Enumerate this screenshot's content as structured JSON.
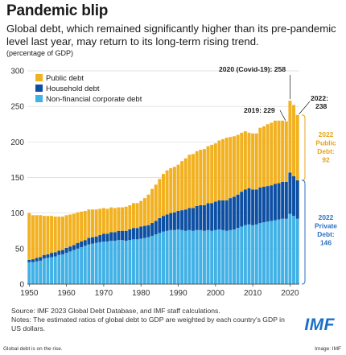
{
  "header": {
    "title": "Pandemic blip",
    "subtitle": "Global debt, which remained significantly higher than its pre-pandemic level last year, may return to its long-term rising trend.",
    "units": "(percentage of GDP)"
  },
  "colors": {
    "public": "#f2b120",
    "household": "#0d4fa3",
    "corporate": "#42b1e6",
    "text": "#1a1a1a",
    "private_annotation": "#2b6fc2",
    "public_annotation": "#e8a316"
  },
  "chart_data": {
    "type": "bar",
    "stacked": true,
    "xlim": [
      1950,
      2022
    ],
    "ylim": [
      0,
      300
    ],
    "y_ticks": [
      "0",
      "50",
      "100",
      "150",
      "200",
      "250",
      "300"
    ],
    "x_ticks": [
      "1950",
      "1960",
      "1970",
      "1980",
      "1990",
      "2000",
      "2010",
      "2020"
    ],
    "legend": {
      "position": "top-left",
      "entries": [
        "Public debt",
        "Household debt",
        "Non-financial corporate debt"
      ]
    },
    "categories": [
      1950,
      1951,
      1952,
      1953,
      1954,
      1955,
      1956,
      1957,
      1958,
      1959,
      1960,
      1961,
      1962,
      1963,
      1964,
      1965,
      1966,
      1967,
      1968,
      1969,
      1970,
      1971,
      1972,
      1973,
      1974,
      1975,
      1976,
      1977,
      1978,
      1979,
      1980,
      1981,
      1982,
      1983,
      1984,
      1985,
      1986,
      1987,
      1988,
      1989,
      1990,
      1991,
      1992,
      1993,
      1994,
      1995,
      1996,
      1997,
      1998,
      1999,
      2000,
      2001,
      2002,
      2003,
      2004,
      2005,
      2006,
      2007,
      2008,
      2009,
      2010,
      2011,
      2012,
      2013,
      2014,
      2015,
      2016,
      2017,
      2018,
      2019,
      2020,
      2021,
      2022
    ],
    "series": [
      {
        "name": "Non-financial corporate debt",
        "values": [
          31,
          31,
          32,
          33,
          36,
          37,
          38,
          39,
          41,
          42,
          44,
          46,
          48,
          50,
          52,
          54,
          56,
          57,
          58,
          59,
          60,
          60,
          61,
          61,
          62,
          62,
          61,
          62,
          63,
          63,
          64,
          65,
          66,
          68,
          70,
          72,
          74,
          75,
          76,
          76,
          77,
          76,
          75,
          76,
          75,
          76,
          76,
          75,
          76,
          75,
          76,
          77,
          76,
          75,
          76,
          77,
          79,
          81,
          83,
          84,
          83,
          84,
          86,
          87,
          88,
          89,
          90,
          91,
          92,
          92,
          99,
          96,
          92
        ]
      },
      {
        "name": "Household debt",
        "values": [
          3,
          4,
          5,
          5,
          5,
          5,
          6,
          6,
          6,
          6,
          7,
          7,
          7,
          8,
          8,
          8,
          9,
          9,
          9,
          10,
          11,
          11,
          12,
          12,
          13,
          13,
          14,
          15,
          16,
          16,
          17,
          17,
          17,
          18,
          19,
          21,
          22,
          23,
          24,
          25,
          26,
          28,
          30,
          31,
          32,
          34,
          35,
          36,
          38,
          39,
          40,
          41,
          42,
          43,
          45,
          46,
          47,
          49,
          50,
          51,
          50,
          49,
          50,
          50,
          50,
          50,
          51,
          51,
          52,
          52,
          58,
          56,
          54
        ]
      },
      {
        "name": "Public debt",
        "values": [
          66,
          62,
          60,
          59,
          55,
          54,
          52,
          50,
          48,
          47,
          46,
          45,
          44,
          43,
          42,
          41,
          40,
          39,
          38,
          37,
          36,
          35,
          35,
          34,
          33,
          33,
          34,
          34,
          35,
          35,
          36,
          39,
          43,
          48,
          51,
          55,
          59,
          62,
          63,
          64,
          65,
          69,
          72,
          75,
          76,
          77,
          78,
          79,
          80,
          82,
          82,
          84,
          86,
          88,
          86,
          85,
          84,
          83,
          82,
          78,
          79,
          79,
          84,
          85,
          87,
          88,
          89,
          88,
          86,
          85,
          101,
          100,
          92
        ]
      }
    ],
    "annotations": [
      {
        "text": "2020 (Covid-19): 258",
        "x": 2020,
        "y": 258
      },
      {
        "text": "2019: 229",
        "x": 2019,
        "y": 229
      },
      {
        "text": "2022:",
        "text2": "238",
        "x": 2022,
        "y": 238
      },
      {
        "lines": [
          "2022",
          "Public",
          "Debt:",
          "92"
        ],
        "x": 2022,
        "y_from": 146,
        "y_to": 238
      },
      {
        "lines": [
          "2022",
          "Private",
          "Debt:",
          "146"
        ],
        "x": 2022,
        "y_from": 0,
        "y_to": 146
      }
    ]
  },
  "footer": {
    "source": "Source: IMF 2023 Global Debt Database, and IMF staff calculations.",
    "notes": "Notes: The estimated ratios of global debt to GDP are weighted by each country's GDP in US dollars.",
    "logo": "IMF",
    "caption_left": "Global debt is on the rise.",
    "caption_right": "Image: IMF"
  }
}
